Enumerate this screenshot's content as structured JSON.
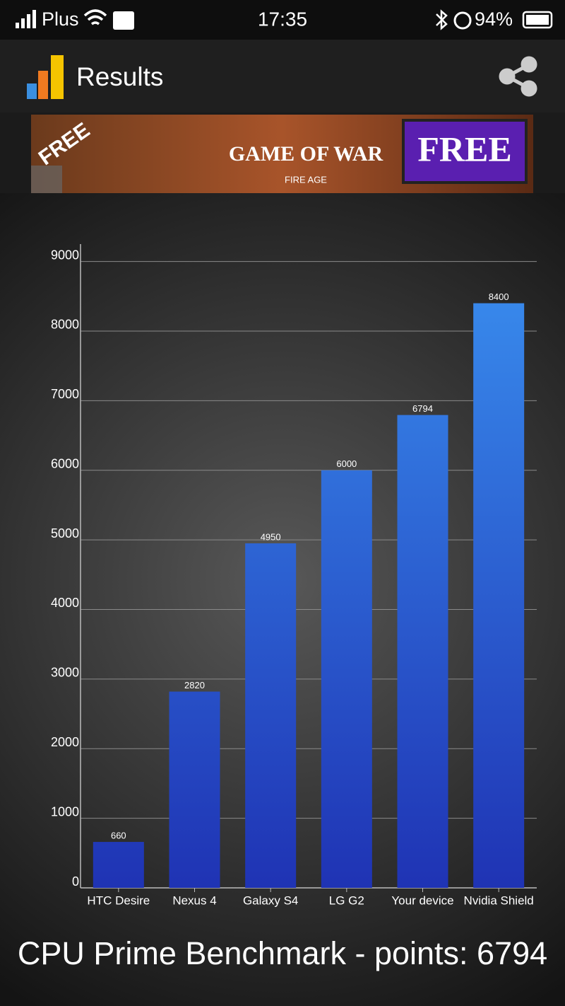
{
  "status_bar": {
    "carrier": "Plus",
    "time": "17:35",
    "battery": "94%"
  },
  "app_bar": {
    "title": "Results"
  },
  "ad": {
    "texts": [
      "FREE",
      "GAME OF WAR",
      "FIRE AGE",
      "FREE"
    ]
  },
  "chart_data": {
    "type": "bar",
    "categories": [
      "HTC Desire",
      "Nexus 4",
      "Galaxy S4",
      "LG G2",
      "Your device",
      "Nvidia Shield"
    ],
    "values": [
      660,
      2820,
      4950,
      6000,
      6794,
      8400
    ],
    "gradient": [
      "#3a90f0",
      "#1f33b4"
    ],
    "ylim": [
      0,
      9250
    ],
    "yticks": [
      0,
      1000,
      2000,
      3000,
      4000,
      5000,
      6000,
      7000,
      8000,
      9000
    ],
    "grid": true
  },
  "footer": {
    "text": "CPU Prime Benchmark - points: 6794"
  }
}
